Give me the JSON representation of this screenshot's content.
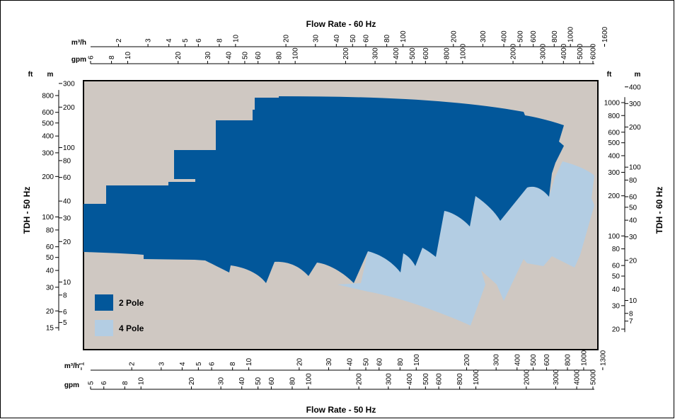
{
  "chart_data": {
    "type": "area",
    "title_top": "Flow Rate - 60 Hz",
    "title_bottom": "Flow Rate - 50 Hz",
    "ylabel_left": "TDH - 50 Hz",
    "ylabel_right": "TDH - 60 Hz",
    "scale": "log-log",
    "colors": {
      "pole2": "#02579a",
      "pole4": "#b3cde3",
      "background": "#cfc8c2"
    },
    "axes": {
      "top": {
        "row1_unit": "m³/h",
        "row1_ticks": [
          "2",
          "3",
          "4",
          "5",
          "6",
          "8",
          "10",
          "20",
          "30",
          "40",
          "50",
          "60",
          "80",
          "100",
          "200",
          "300",
          "400",
          "500",
          "600",
          "800",
          "1000",
          "1600"
        ],
        "row2_unit": "gpm",
        "row2_ticks": [
          "6",
          "8",
          "10",
          "20",
          "30",
          "40",
          "50",
          "60",
          "80",
          "100",
          "200",
          "300",
          "400",
          "500",
          "600",
          "800",
          "1000",
          "2000",
          "3000",
          "4000",
          "5000",
          "6000"
        ]
      },
      "bottom": {
        "row1_unit": "m³/h",
        "row1_ticks": [
          "1",
          "2",
          "3",
          "4",
          "5",
          "6",
          "8",
          "10",
          "20",
          "30",
          "40",
          "50",
          "60",
          "80",
          "100",
          "200",
          "300",
          "400",
          "500",
          "600",
          "800",
          "1000",
          "1300"
        ],
        "row2_unit": "gpm",
        "row2_ticks": [
          "5",
          "6",
          "8",
          "10",
          "20",
          "30",
          "40",
          "50",
          "60",
          "80",
          "100",
          "200",
          "300",
          "400",
          "500",
          "600",
          "800",
          "1000",
          "2000",
          "3000",
          "4000",
          "5000"
        ]
      },
      "left": {
        "ft_unit": "ft",
        "ft_ticks": [
          "15",
          "20",
          "30",
          "40",
          "50",
          "60",
          "80",
          "100",
          "200",
          "300",
          "400",
          "500",
          "600",
          "800"
        ],
        "m_unit": "m",
        "m_ticks": [
          "5",
          "6",
          "8",
          "10",
          "20",
          "30",
          "40",
          "60",
          "80",
          "100",
          "200",
          "300"
        ]
      },
      "right": {
        "ft_unit": "ft",
        "ft_ticks": [
          "20",
          "30",
          "40",
          "50",
          "60",
          "80",
          "100",
          "200",
          "300",
          "400",
          "500",
          "600",
          "800",
          "1000"
        ],
        "m_unit": "m",
        "m_ticks": [
          "7",
          "8",
          "10",
          "20",
          "30",
          "40",
          "50",
          "60",
          "80",
          "100",
          "200",
          "300",
          "400"
        ]
      }
    },
    "series": [
      {
        "name": "2 Pole",
        "color": "#02579a"
      },
      {
        "name": "4 Pole",
        "color": "#b3cde3"
      }
    ]
  }
}
